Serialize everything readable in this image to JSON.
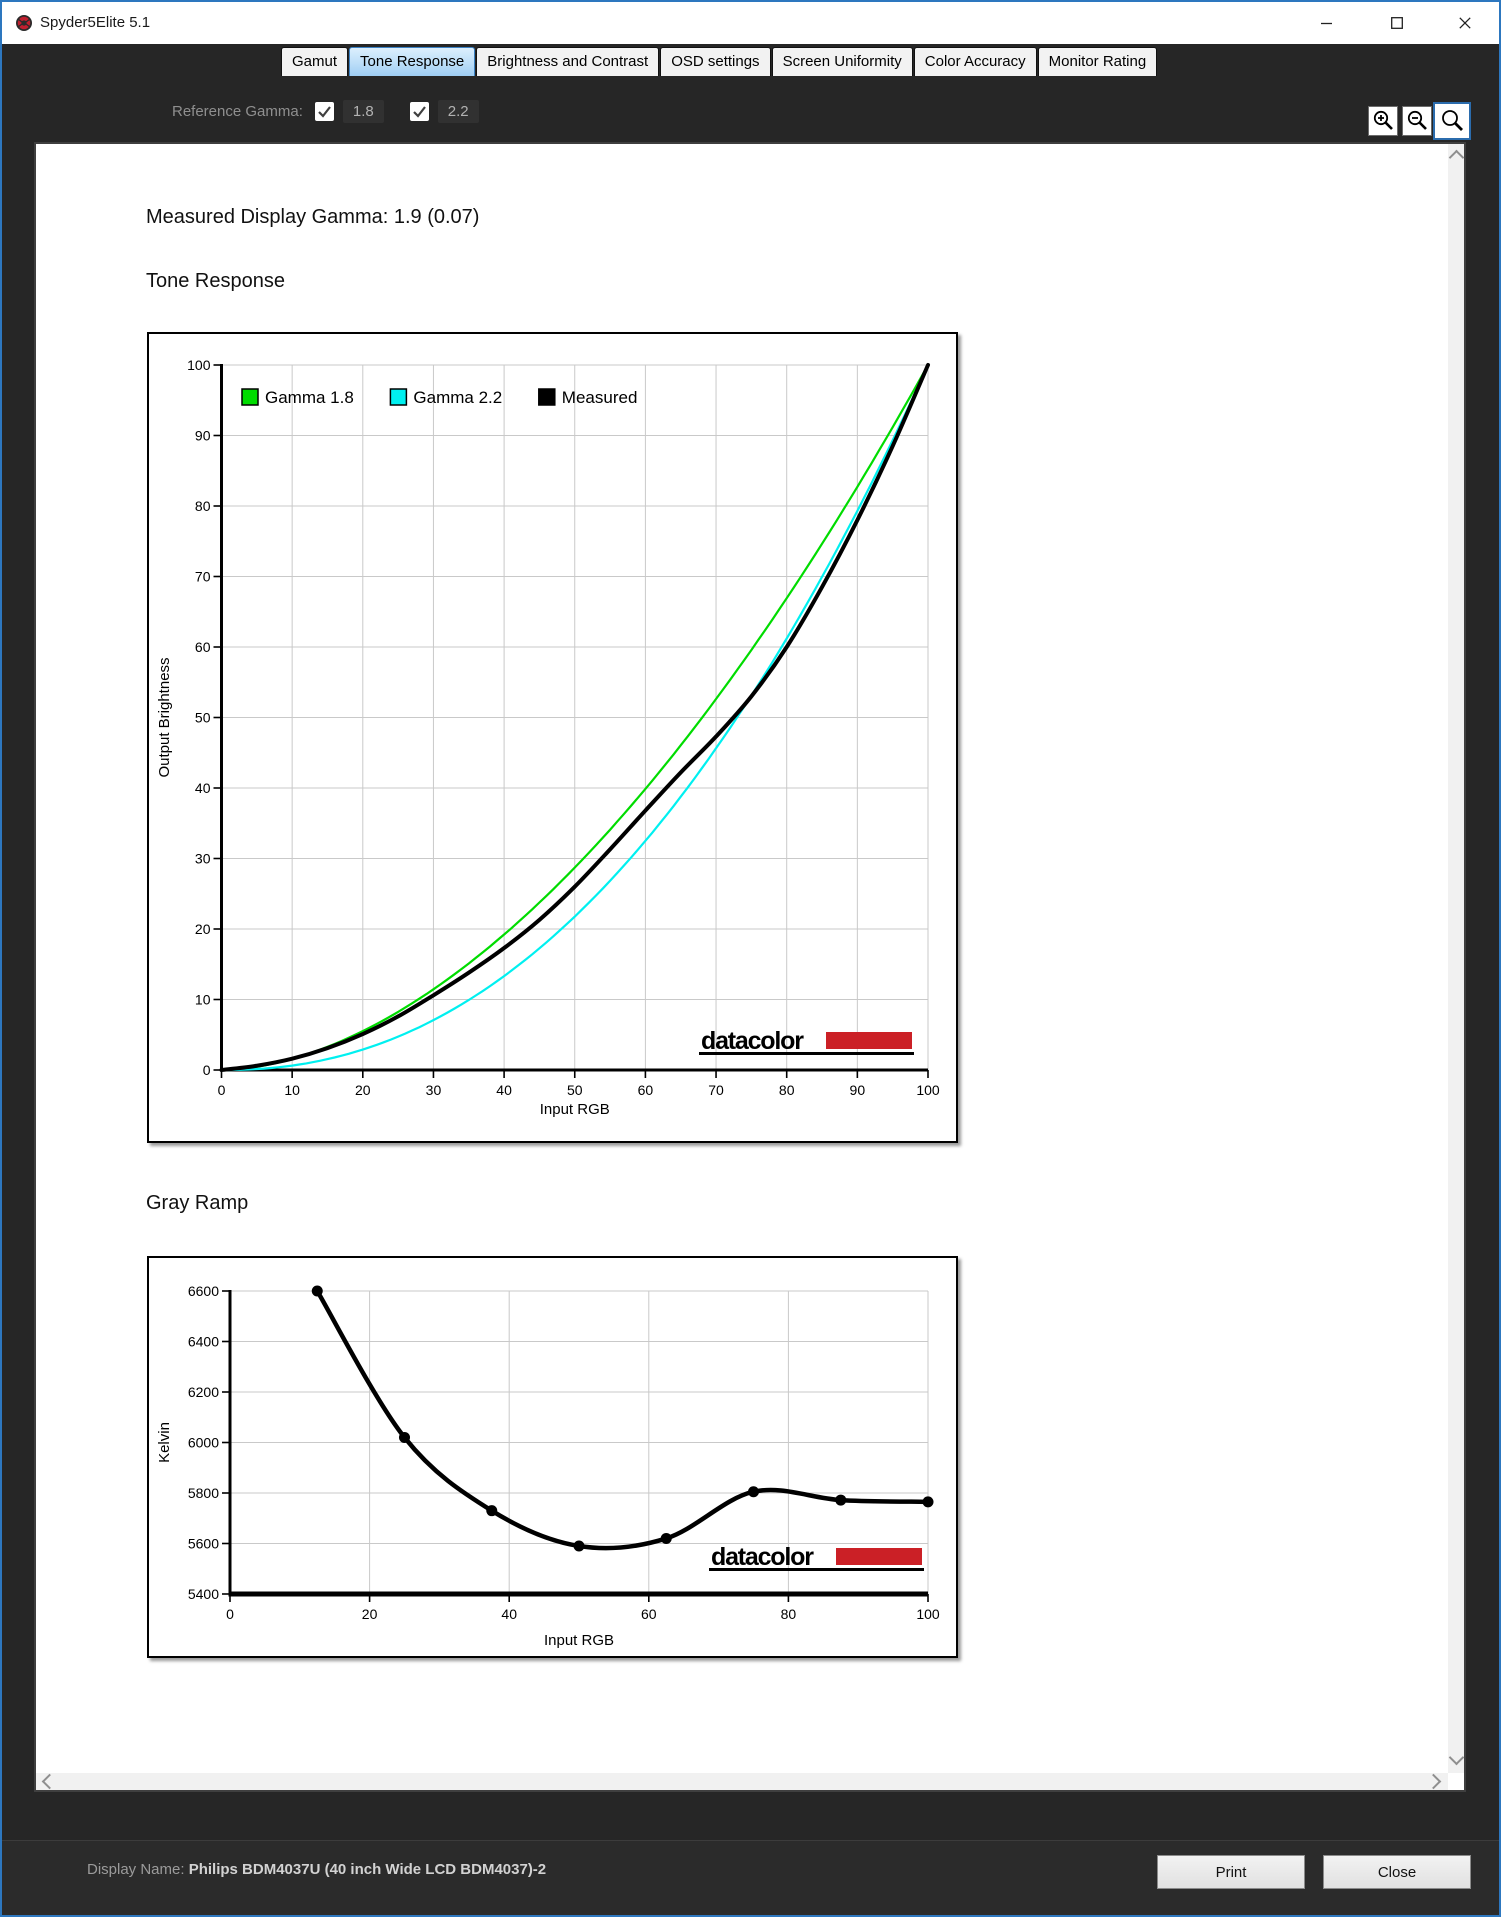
{
  "window": {
    "title": "Spyder5Elite 5.1"
  },
  "window_controls": {
    "minimize": "minimize",
    "maximize": "maximize",
    "close": "close"
  },
  "tabs": [
    {
      "label": "Gamut",
      "selected": false
    },
    {
      "label": "Tone Response",
      "selected": true
    },
    {
      "label": "Brightness and Contrast",
      "selected": false
    },
    {
      "label": "OSD settings",
      "selected": false
    },
    {
      "label": "Screen Uniformity",
      "selected": false
    },
    {
      "label": "Color Accuracy",
      "selected": false
    },
    {
      "label": "Monitor Rating",
      "selected": false
    }
  ],
  "reference_gamma": {
    "label": "Reference Gamma:",
    "options": [
      {
        "label": "1.8",
        "checked": true
      },
      {
        "label": "2.2",
        "checked": true
      }
    ]
  },
  "zoom_tools": [
    {
      "name": "zoom-in",
      "selected": false
    },
    {
      "name": "zoom-out",
      "selected": false
    },
    {
      "name": "zoom-reset",
      "selected": true
    }
  ],
  "headings": {
    "measured_gamma": "Measured Display Gamma: 1.9 (0.07)",
    "tone_response": "Tone Response",
    "gray_ramp": "Gray Ramp"
  },
  "logo": {
    "text": "datacolor",
    "red": "#cb2026"
  },
  "colors": {
    "gamma18": "#00dc00",
    "gamma22": "#00f0f0",
    "measured": "#000000",
    "grid": "#c9c9c9",
    "accent_blue": "#2d77bf"
  },
  "chart_data": [
    {
      "type": "line",
      "title": "Tone Response",
      "xlabel": "Input RGB",
      "ylabel": "Output Brightness",
      "xlim": [
        0,
        100
      ],
      "ylim": [
        0,
        100
      ],
      "xticks": [
        0,
        10,
        20,
        30,
        40,
        50,
        60,
        70,
        80,
        90,
        100
      ],
      "yticks": [
        0,
        10,
        20,
        30,
        40,
        50,
        60,
        70,
        80,
        90,
        100
      ],
      "grid": true,
      "legend_position": "top-left-inside",
      "series": [
        {
          "name": "Gamma 1.8",
          "color": "#00dc00",
          "gamma": 1.8,
          "width": 2.2
        },
        {
          "name": "Gamma 2.2",
          "color": "#00f0f0",
          "gamma": 2.2,
          "width": 2.2
        },
        {
          "name": "Measured",
          "color": "#000000",
          "width": 4,
          "points": [
            [
              0,
              0
            ],
            [
              5,
              0.6
            ],
            [
              10,
              1.6
            ],
            [
              15,
              3.1
            ],
            [
              20,
              5.1
            ],
            [
              25,
              7.6
            ],
            [
              30,
              10.6
            ],
            [
              35,
              13.8
            ],
            [
              40,
              17.3
            ],
            [
              45,
              21.3
            ],
            [
              50,
              26
            ],
            [
              55,
              31.3
            ],
            [
              60,
              36.8
            ],
            [
              65,
              42.2
            ],
            [
              70,
              47.3
            ],
            [
              75,
              53
            ],
            [
              80,
              60
            ],
            [
              85,
              68.5
            ],
            [
              90,
              78
            ],
            [
              95,
              88.5
            ],
            [
              100,
              100
            ]
          ]
        }
      ]
    },
    {
      "type": "line",
      "title": "Gray Ramp",
      "xlabel": "Input RGB",
      "ylabel": "Kelvin",
      "xlim": [
        0,
        100
      ],
      "ylim": [
        5400,
        6600
      ],
      "xticks": [
        0,
        20,
        40,
        60,
        80,
        100
      ],
      "yticks": [
        5400,
        5600,
        5800,
        6000,
        6200,
        6400,
        6600
      ],
      "grid": true,
      "series": [
        {
          "name": "Gray Ramp",
          "color": "#000000",
          "width": 4.5,
          "markers": true,
          "marker_radius": 5.5,
          "points": [
            [
              12.5,
              6600
            ],
            [
              25,
              6020
            ],
            [
              37.5,
              5730
            ],
            [
              50,
              5590
            ],
            [
              62.5,
              5620
            ],
            [
              75,
              5805
            ],
            [
              87.5,
              5772
            ],
            [
              100,
              5765
            ]
          ]
        }
      ]
    }
  ],
  "status": {
    "label": "Display Name: ",
    "value": "Philips BDM4037U (40 inch Wide LCD BDM4037)-2"
  },
  "buttons": {
    "print": "Print",
    "close": "Close"
  }
}
